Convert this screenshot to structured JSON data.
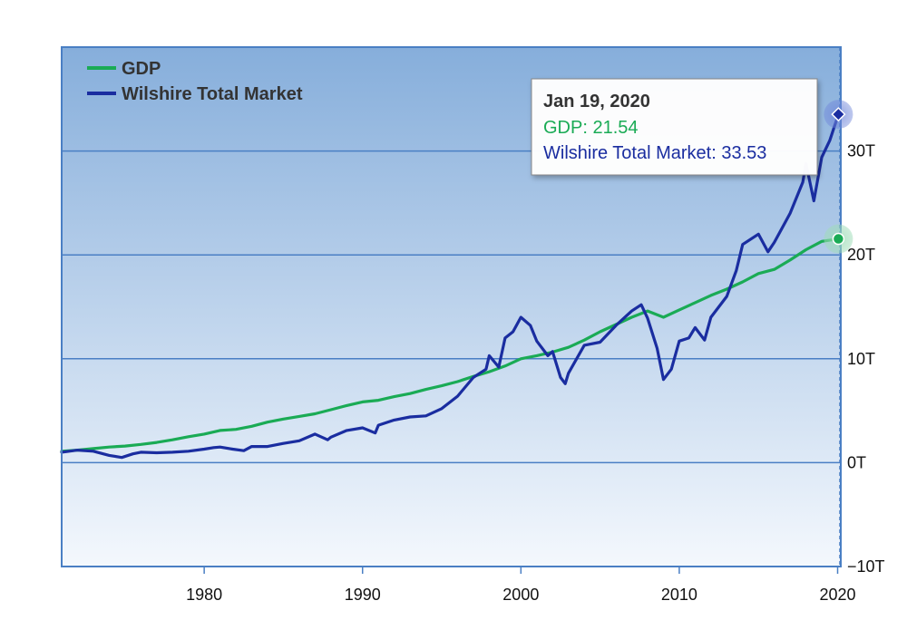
{
  "chart_data": {
    "type": "line",
    "title": "",
    "xlabel": "",
    "ylabel": "",
    "xlim": [
      1971,
      2020.2
    ],
    "ylim": [
      -10,
      40
    ],
    "x_ticks": [
      1980,
      1990,
      2000,
      2010,
      2020
    ],
    "x_tick_labels": [
      "1980",
      "1990",
      "2000",
      "2010",
      "2020"
    ],
    "y_ticks": [
      -10,
      0,
      10,
      20,
      30
    ],
    "y_tick_labels": [
      "−10T",
      "0T",
      "10T",
      "20T",
      "30T"
    ],
    "y_axis_side": "right",
    "grid": true,
    "legend_position": "top-left",
    "background_gradient": [
      "#86aedb",
      "#f4f8fd"
    ],
    "series": [
      {
        "name": "GDP",
        "color": "#1aab55",
        "points": [
          [
            1971,
            1.1
          ],
          [
            1972,
            1.2
          ],
          [
            1973,
            1.35
          ],
          [
            1974,
            1.5
          ],
          [
            1975,
            1.6
          ],
          [
            1976,
            1.75
          ],
          [
            1977,
            1.95
          ],
          [
            1978,
            2.2
          ],
          [
            1979,
            2.5
          ],
          [
            1980,
            2.75
          ],
          [
            1981,
            3.1
          ],
          [
            1982,
            3.2
          ],
          [
            1983,
            3.5
          ],
          [
            1984,
            3.9
          ],
          [
            1985,
            4.2
          ],
          [
            1986,
            4.45
          ],
          [
            1987,
            4.7
          ],
          [
            1988,
            5.1
          ],
          [
            1989,
            5.5
          ],
          [
            1990,
            5.85
          ],
          [
            1991,
            6.0
          ],
          [
            1992,
            6.35
          ],
          [
            1993,
            6.65
          ],
          [
            1994,
            7.05
          ],
          [
            1995,
            7.4
          ],
          [
            1996,
            7.8
          ],
          [
            1997,
            8.3
          ],
          [
            1998,
            8.75
          ],
          [
            1999,
            9.3
          ],
          [
            2000,
            10.0
          ],
          [
            2001,
            10.3
          ],
          [
            2002,
            10.65
          ],
          [
            2003,
            11.1
          ],
          [
            2004,
            11.8
          ],
          [
            2005,
            12.6
          ],
          [
            2006,
            13.3
          ],
          [
            2007,
            14.0
          ],
          [
            2008,
            14.6
          ],
          [
            2009,
            14.0
          ],
          [
            2010,
            14.7
          ],
          [
            2011,
            15.4
          ],
          [
            2012,
            16.1
          ],
          [
            2013,
            16.7
          ],
          [
            2014,
            17.4
          ],
          [
            2015,
            18.2
          ],
          [
            2016,
            18.6
          ],
          [
            2017,
            19.5
          ],
          [
            2018,
            20.5
          ],
          [
            2019,
            21.3
          ],
          [
            2020.05,
            21.54
          ]
        ]
      },
      {
        "name": "Wilshire Total Market",
        "color": "#1a2da0",
        "points": [
          [
            1971,
            1.0
          ],
          [
            1972,
            1.2
          ],
          [
            1973,
            1.1
          ],
          [
            1974,
            0.7
          ],
          [
            1974.8,
            0.5
          ],
          [
            1975.5,
            0.85
          ],
          [
            1976,
            1.0
          ],
          [
            1977,
            0.95
          ],
          [
            1978,
            1.0
          ],
          [
            1979,
            1.1
          ],
          [
            1980,
            1.3
          ],
          [
            1980.6,
            1.45
          ],
          [
            1981,
            1.5
          ],
          [
            1981.8,
            1.3
          ],
          [
            1982.5,
            1.15
          ],
          [
            1983,
            1.55
          ],
          [
            1984,
            1.55
          ],
          [
            1985,
            1.85
          ],
          [
            1986,
            2.1
          ],
          [
            1987,
            2.75
          ],
          [
            1987.8,
            2.2
          ],
          [
            1988,
            2.45
          ],
          [
            1989,
            3.1
          ],
          [
            1990,
            3.35
          ],
          [
            1990.8,
            2.85
          ],
          [
            1991,
            3.6
          ],
          [
            1992,
            4.1
          ],
          [
            1993,
            4.4
          ],
          [
            1994,
            4.5
          ],
          [
            1995,
            5.2
          ],
          [
            1996,
            6.4
          ],
          [
            1997,
            8.2
          ],
          [
            1997.8,
            9.0
          ],
          [
            1998,
            10.3
          ],
          [
            1998.6,
            9.2
          ],
          [
            1999,
            12.0
          ],
          [
            1999.5,
            12.6
          ],
          [
            2000,
            14.0
          ],
          [
            2000.6,
            13.2
          ],
          [
            2001,
            11.7
          ],
          [
            2001.7,
            10.3
          ],
          [
            2002,
            10.7
          ],
          [
            2002.5,
            8.2
          ],
          [
            2002.8,
            7.6
          ],
          [
            2003,
            8.6
          ],
          [
            2004,
            11.3
          ],
          [
            2005,
            11.6
          ],
          [
            2006,
            13.2
          ],
          [
            2007,
            14.6
          ],
          [
            2007.6,
            15.2
          ],
          [
            2008,
            13.9
          ],
          [
            2008.6,
            11.0
          ],
          [
            2009,
            8.0
          ],
          [
            2009.5,
            9.0
          ],
          [
            2010,
            11.7
          ],
          [
            2010.6,
            12.0
          ],
          [
            2011,
            13.0
          ],
          [
            2011.6,
            11.8
          ],
          [
            2012,
            14.0
          ],
          [
            2013,
            16.0
          ],
          [
            2013.6,
            18.5
          ],
          [
            2014,
            21.0
          ],
          [
            2015,
            22.0
          ],
          [
            2015.6,
            20.3
          ],
          [
            2016,
            21.2
          ],
          [
            2017,
            24.0
          ],
          [
            2017.8,
            27.0
          ],
          [
            2018,
            28.8
          ],
          [
            2018.5,
            25.2
          ],
          [
            2019,
            29.4
          ],
          [
            2019.5,
            31.0
          ],
          [
            2020.05,
            33.53
          ]
        ]
      }
    ],
    "tooltip": {
      "date": "Jan 19, 2020",
      "lines": [
        "GDP: 21.54",
        "Wilshire Total Market: 33.53"
      ]
    }
  }
}
